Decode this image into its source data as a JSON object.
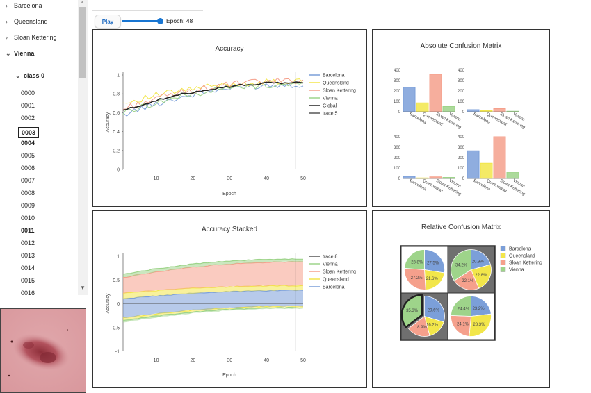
{
  "sidebar": {
    "groups": [
      {
        "label": "Barcelona",
        "expanded": false
      },
      {
        "label": "Queensland",
        "expanded": false
      },
      {
        "label": "Sloan Kettering",
        "expanded": false
      },
      {
        "label": "Vienna",
        "expanded": true
      }
    ],
    "class_label": "class 0",
    "files": [
      "0000",
      "0001",
      "0002",
      "0003",
      "0004",
      "0005",
      "0006",
      "0007",
      "0008",
      "0009",
      "0010",
      "0011",
      "0012",
      "0013",
      "0014",
      "0015",
      "0016"
    ],
    "selected_file": "0003",
    "bold_files": [
      "0003",
      "0004",
      "0011"
    ]
  },
  "controls": {
    "play_label": "Play",
    "epoch_text": "Epoch: 48",
    "slider_fraction": 0.96
  },
  "colors": {
    "Barcelona": "#7b9fd9",
    "Queensland": "#f2e64a",
    "Sloan Kettering": "#f5a08c",
    "Vienna": "#9ed48a",
    "Global": "#222222"
  },
  "chart_data": [
    {
      "type": "line",
      "title": "Accuracy",
      "xlabel": "Epoch",
      "ylabel": "Accuracy",
      "xlim": [
        1,
        50
      ],
      "ylim": [
        0,
        1
      ],
      "xticks": [
        "10",
        "20",
        "30",
        "40",
        "50"
      ],
      "yticks": [
        "0",
        "0.2",
        "0.4",
        "0.6",
        "0.8",
        "1"
      ],
      "vline_x": 48,
      "legend": [
        "Barcelona",
        "Queensland",
        "Sloan Kettering",
        "Vienna",
        "Global",
        "trace 5"
      ],
      "series": [
        {
          "name": "Barcelona",
          "start": 0.58,
          "end": 0.9
        },
        {
          "name": "Queensland",
          "start": 0.7,
          "end": 0.93
        },
        {
          "name": "Sloan Kettering",
          "start": 0.64,
          "end": 0.94
        },
        {
          "name": "Vienna",
          "start": 0.6,
          "end": 0.9
        },
        {
          "name": "Global",
          "start": 0.62,
          "end": 0.92
        }
      ]
    },
    {
      "type": "area",
      "title": "Accuracy Stacked",
      "xlabel": "Epoch",
      "ylabel": "Accuracy",
      "xlim": [
        1,
        50
      ],
      "ylim": [
        -1,
        1
      ],
      "xticks": [
        "10",
        "20",
        "30",
        "40",
        "50"
      ],
      "yticks": [
        "-1",
        "-0.5",
        "0",
        "0.5",
        "1"
      ],
      "vline_x": 48,
      "legend": [
        "trace 8",
        "Vienna",
        "Sloan Kettering",
        "Queensland",
        "Barcelona"
      ],
      "bands": [
        {
          "name": "Barcelona",
          "lower_start": -0.3,
          "lower_end": -0.05,
          "upper_start": 0.1,
          "upper_end": 0.28
        },
        {
          "name": "Queensland",
          "lower_start": 0.1,
          "lower_end": 0.28,
          "upper_start": 0.22,
          "upper_end": 0.38
        },
        {
          "name": "Sloan Kettering",
          "lower_start": 0.22,
          "lower_end": 0.38,
          "upper_start": 0.55,
          "upper_end": 0.88
        },
        {
          "name": "Vienna",
          "lower_start": 0.55,
          "lower_end": 0.88,
          "upper_start": 0.62,
          "upper_end": 0.94
        }
      ],
      "neg_bands": [
        {
          "name": "Queensland",
          "from_start": -0.3,
          "from_end": -0.05,
          "to_start": -0.36,
          "to_end": -0.08
        },
        {
          "name": "Vienna",
          "from_start": -0.36,
          "from_end": -0.08,
          "to_start": -0.4,
          "to_end": -0.1
        }
      ]
    },
    {
      "type": "bar",
      "title": "Absolute Confusion Matrix",
      "categories": [
        "Barcelona",
        "Queensland",
        "Sloan Kettering",
        "Vienna"
      ],
      "yticks": [
        "0",
        "100",
        "200",
        "300",
        "400"
      ],
      "ylim": [
        0,
        400
      ],
      "subplots": [
        {
          "values": [
            235,
            85,
            360,
            50
          ]
        },
        {
          "values": [
            20,
            10,
            30,
            5
          ]
        },
        {
          "values": [
            20,
            5,
            15,
            10
          ]
        },
        {
          "values": [
            265,
            145,
            445,
            60
          ]
        }
      ]
    },
    {
      "type": "pie",
      "title": "Relative Confusion Matrix",
      "legend": [
        "Barcelona",
        "Queensland",
        "Sloan Kettering",
        "Vienna"
      ],
      "subplots": [
        {
          "slices": [
            27.5,
            21.6,
            27.2,
            23.8
          ],
          "labels": [
            "27.5%",
            "21.6%",
            "27.2%",
            "23.8%"
          ],
          "highlight": false,
          "pulled": null
        },
        {
          "slices": [
            20.9,
            22.8,
            22.1,
            34.2
          ],
          "labels": [
            "20.9%",
            "22.8%",
            "22.1%",
            "34.2%"
          ],
          "highlight": true,
          "pulled": null
        },
        {
          "slices": [
            29.6,
            16.2,
            18.9,
            35.3
          ],
          "labels": [
            "29.6%",
            "16.2%",
            "18.9%",
            "35.3%"
          ],
          "highlight": true,
          "pulled": 3
        },
        {
          "slices": [
            23.2,
            28.3,
            24.1,
            24.4
          ],
          "labels": [
            "23.2%",
            "28.3%",
            "24.1%",
            "24.4%"
          ],
          "highlight": false,
          "pulled": null
        }
      ]
    }
  ]
}
